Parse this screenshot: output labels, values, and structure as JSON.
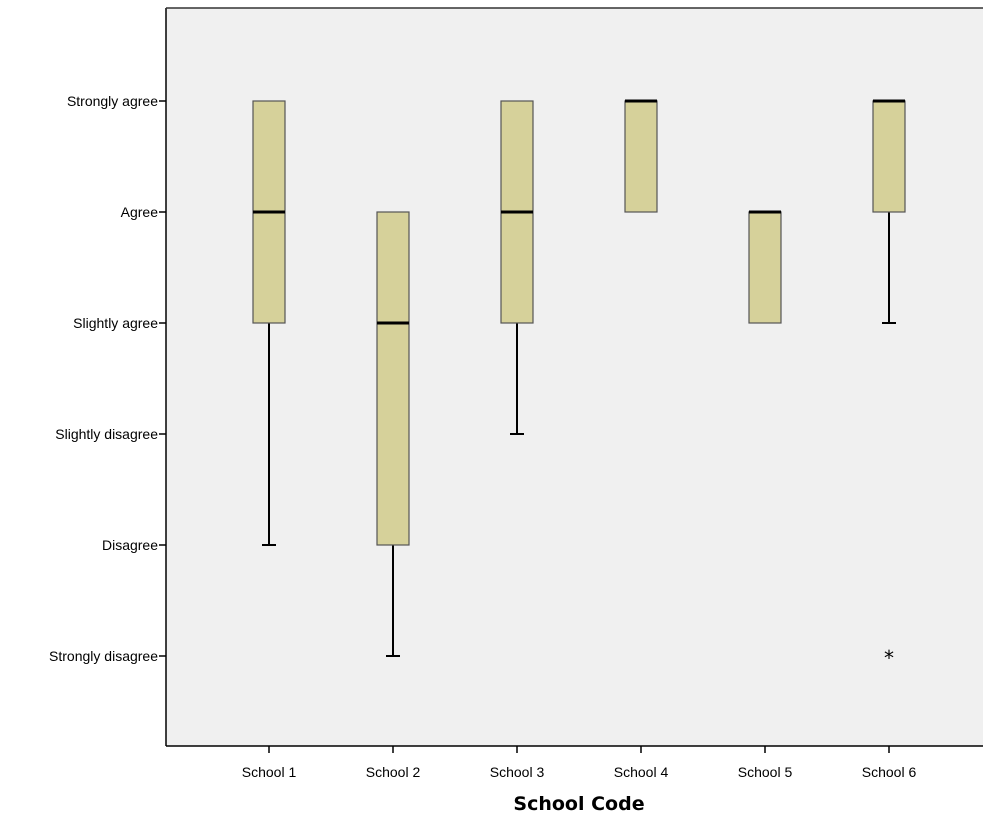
{
  "chart_data": {
    "type": "boxplot",
    "title": "",
    "xlabel": "School Code",
    "ylabel": "",
    "categories": [
      "School 1",
      "School 2",
      "School 3",
      "School 4",
      "School 5",
      "School 6"
    ],
    "y_levels": [
      "Strongly disagree",
      "Disagree",
      "Slightly disagree",
      "Slightly agree",
      "Agree",
      "Strongly agree"
    ],
    "ylim": [
      0,
      7
    ],
    "boxes": [
      {
        "category": "School 1",
        "whisker_low": 2,
        "q1": 4,
        "median": 5,
        "q3": 6,
        "whisker_high": 6,
        "outliers": []
      },
      {
        "category": "School 2",
        "whisker_low": 1,
        "q1": 2,
        "median": 4,
        "q3": 5,
        "whisker_high": 5,
        "outliers": []
      },
      {
        "category": "School 3",
        "whisker_low": 3,
        "q1": 4,
        "median": 5,
        "q3": 6,
        "whisker_high": 6,
        "outliers": []
      },
      {
        "category": "School 4",
        "whisker_low": 5,
        "q1": 5,
        "median": 6,
        "q3": 6,
        "whisker_high": 6,
        "outliers": []
      },
      {
        "category": "School 5",
        "whisker_low": 4,
        "q1": 4,
        "median": 5,
        "q3": 5,
        "whisker_high": 5,
        "outliers": []
      },
      {
        "category": "School 6",
        "whisker_low": 4,
        "q1": 5,
        "median": 6,
        "q3": 6,
        "whisker_high": 6,
        "outliers": [
          1
        ]
      }
    ],
    "outlier_marker": "*",
    "grid": false,
    "legend": "none",
    "colors": {
      "plot_background": "#f0f0f0",
      "box_fill": "#d6d19a",
      "box_stroke": "#555555",
      "median": "#000000",
      "whisker": "#000000",
      "axis": "#000000"
    }
  }
}
